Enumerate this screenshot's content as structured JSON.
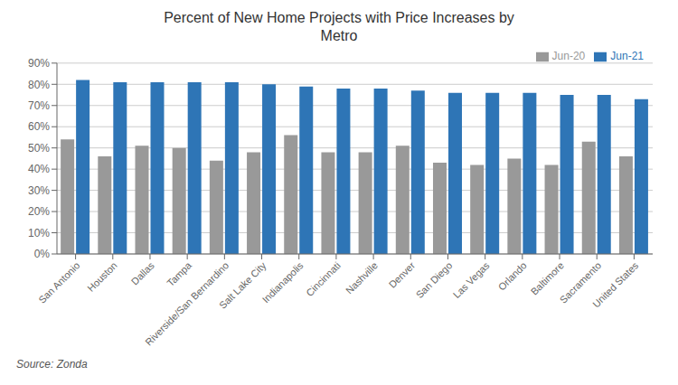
{
  "chart_data": {
    "type": "bar",
    "title": "Percent of New Home Projects with Price Increases by\nMetro",
    "categories": [
      "San Antonio",
      "Houston",
      "Dallas",
      "Tampa",
      "Riverside/San Bernardino",
      "Salt Lake City",
      "Indianapolis",
      "Cincinnati",
      "Nashville",
      "Denver",
      "San Diego",
      "Las Vegas",
      "Orlando",
      "Baltimore",
      "Sacramento",
      "United States"
    ],
    "series": [
      {
        "name": "Jun-20",
        "color": "#999999",
        "values": [
          0.54,
          0.46,
          0.51,
          0.5,
          0.44,
          0.48,
          0.56,
          0.48,
          0.48,
          0.51,
          0.43,
          0.42,
          0.45,
          0.42,
          0.53,
          0.46
        ]
      },
      {
        "name": "Jun-21",
        "color": "#2e75b6",
        "values": [
          0.82,
          0.81,
          0.81,
          0.81,
          0.81,
          0.8,
          0.79,
          0.78,
          0.78,
          0.77,
          0.76,
          0.76,
          0.76,
          0.75,
          0.75,
          0.73
        ]
      }
    ],
    "ylim": [
      0,
      0.9
    ],
    "yticks": [
      {
        "value": 0.0,
        "label": "0%"
      },
      {
        "value": 0.1,
        "label": "10%"
      },
      {
        "value": 0.2,
        "label": "20%"
      },
      {
        "value": 0.3,
        "label": "30%"
      },
      {
        "value": 0.4,
        "label": "40%"
      },
      {
        "value": 0.5,
        "label": "50%"
      },
      {
        "value": 0.6,
        "label": "60%"
      },
      {
        "value": 0.7,
        "label": "70%"
      },
      {
        "value": 0.8,
        "label": "80%"
      },
      {
        "value": 0.9,
        "label": "90%"
      }
    ],
    "grid": true,
    "legend": "upper right",
    "annotations": [
      "Source: Zonda"
    ]
  }
}
